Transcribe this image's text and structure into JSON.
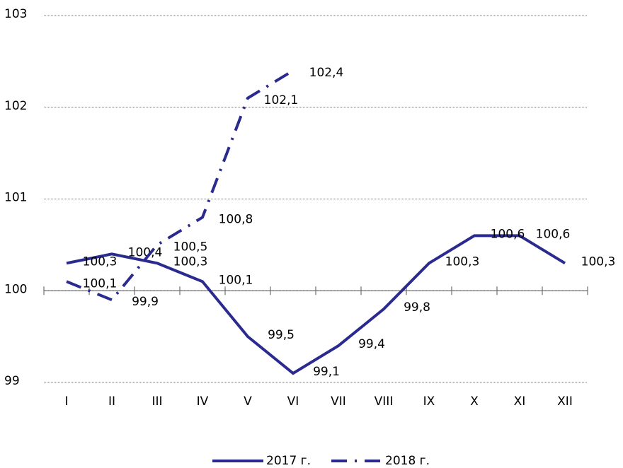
{
  "chart_data": {
    "type": "line",
    "categories": [
      "I",
      "II",
      "III",
      "IV",
      "V",
      "VI",
      "VII",
      "VIII",
      "IX",
      "X",
      "XI",
      "XII"
    ],
    "series": [
      {
        "name": "2017 г.",
        "color": "#2b2a8f",
        "style": "solid",
        "values": [
          100.3,
          100.4,
          100.3,
          100.1,
          99.5,
          99.1,
          99.4,
          99.8,
          100.3,
          100.6,
          100.6,
          100.3
        ],
        "value_labels": [
          "100,3",
          "100,4",
          "100,3",
          "100,1",
          "99,5",
          "99,1",
          "99,4",
          "99,8",
          "100,3",
          "100,6",
          "100,6",
          "100,3"
        ]
      },
      {
        "name": "2018 г.",
        "color": "#2b2a8f",
        "style": "dashdot",
        "values": [
          100.1,
          99.9,
          100.5,
          100.8,
          102.1,
          102.4,
          null,
          null,
          null,
          null,
          null,
          null
        ],
        "value_labels": [
          "100,1",
          "99,9",
          "100,5",
          "100,8",
          "102,1",
          "102,4",
          null,
          null,
          null,
          null,
          null,
          null
        ]
      }
    ],
    "ylim": [
      99,
      103
    ],
    "yticks": [
      99,
      100,
      101,
      102,
      103
    ],
    "grid": true,
    "baseline": 100,
    "legend": "bottom"
  }
}
